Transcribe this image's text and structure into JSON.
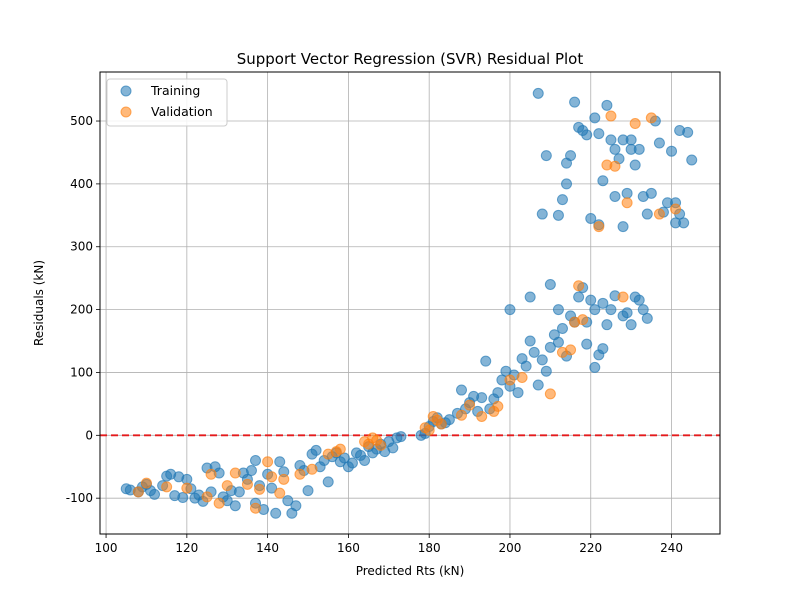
{
  "colors": {
    "training": "#1f77b4",
    "validation": "#ff7f0e",
    "zero_line": "#e41a1c",
    "grid": "#b0b0b0"
  },
  "chart_data": {
    "type": "scatter",
    "title": "Support Vector Regression (SVR) Residual Plot",
    "xlabel": "Predicted Rts (kN)",
    "ylabel": "Residuals (kN)",
    "xlim": [
      98.5,
      252
    ],
    "ylim": [
      -157,
      578
    ],
    "xticks": [
      100,
      120,
      140,
      160,
      180,
      200,
      220,
      240
    ],
    "yticks": [
      -100,
      0,
      100,
      200,
      300,
      400,
      500
    ],
    "grid": true,
    "legend": "top-left",
    "reference_line": {
      "y": 0,
      "style": "dashed",
      "color": "red"
    },
    "series": [
      {
        "name": "Training",
        "color": "#1f77b4",
        "points": [
          [
            105,
            -85
          ],
          [
            106,
            -87
          ],
          [
            108,
            -90
          ],
          [
            109,
            -82
          ],
          [
            110,
            -78
          ],
          [
            111,
            -88
          ],
          [
            112,
            -94
          ],
          [
            114,
            -80
          ],
          [
            115,
            -65
          ],
          [
            116,
            -62
          ],
          [
            117,
            -96
          ],
          [
            118,
            -66
          ],
          [
            119,
            -99
          ],
          [
            120,
            -70
          ],
          [
            121,
            -85
          ],
          [
            122,
            -100
          ],
          [
            123,
            -95
          ],
          [
            124,
            -105
          ],
          [
            125,
            -52
          ],
          [
            126,
            -90
          ],
          [
            127,
            -50
          ],
          [
            128,
            -60
          ],
          [
            129,
            -98
          ],
          [
            130,
            -104
          ],
          [
            131,
            -88
          ],
          [
            132,
            -112
          ],
          [
            133,
            -90
          ],
          [
            134,
            -60
          ],
          [
            135,
            -70
          ],
          [
            136,
            -56
          ],
          [
            137,
            -40
          ],
          [
            137,
            -108
          ],
          [
            138,
            -80
          ],
          [
            139,
            -118
          ],
          [
            140,
            -62
          ],
          [
            141,
            -84
          ],
          [
            142,
            -124
          ],
          [
            143,
            -42
          ],
          [
            144,
            -58
          ],
          [
            145,
            -104
          ],
          [
            146,
            -124
          ],
          [
            147,
            -112
          ],
          [
            148,
            -48
          ],
          [
            149,
            -56
          ],
          [
            150,
            -88
          ],
          [
            151,
            -30
          ],
          [
            152,
            -24
          ],
          [
            153,
            -50
          ],
          [
            154,
            -40
          ],
          [
            155,
            -74
          ],
          [
            156,
            -34
          ],
          [
            157,
            -28
          ],
          [
            158,
            -42
          ],
          [
            159,
            -36
          ],
          [
            160,
            -50
          ],
          [
            161,
            -44
          ],
          [
            162,
            -28
          ],
          [
            163,
            -32
          ],
          [
            164,
            -40
          ],
          [
            165,
            -18
          ],
          [
            166,
            -28
          ],
          [
            167,
            -22
          ],
          [
            168,
            -14
          ],
          [
            169,
            -26
          ],
          [
            170,
            -10
          ],
          [
            171,
            -20
          ],
          [
            172,
            -4
          ],
          [
            173,
            -2
          ],
          [
            178,
            0
          ],
          [
            179,
            3
          ],
          [
            180,
            14
          ],
          [
            181,
            22
          ],
          [
            182,
            28
          ],
          [
            183,
            18
          ],
          [
            184,
            20
          ],
          [
            185,
            25
          ],
          [
            187,
            35
          ],
          [
            188,
            72
          ],
          [
            189,
            42
          ],
          [
            190,
            52
          ],
          [
            191,
            62
          ],
          [
            192,
            38
          ],
          [
            193,
            60
          ],
          [
            194,
            118
          ],
          [
            195,
            42
          ],
          [
            196,
            58
          ],
          [
            197,
            68
          ],
          [
            198,
            88
          ],
          [
            199,
            102
          ],
          [
            200,
            78
          ],
          [
            201,
            96
          ],
          [
            202,
            68
          ],
          [
            203,
            122
          ],
          [
            204,
            110
          ],
          [
            205,
            150
          ],
          [
            206,
            132
          ],
          [
            207,
            80
          ],
          [
            208,
            120
          ],
          [
            209,
            102
          ],
          [
            210,
            140
          ],
          [
            211,
            160
          ],
          [
            212,
            148
          ],
          [
            213,
            170
          ],
          [
            214,
            126
          ],
          [
            215,
            190
          ],
          [
            216,
            180
          ],
          [
            217,
            220
          ],
          [
            218,
            235
          ],
          [
            219,
            145
          ],
          [
            220,
            215
          ],
          [
            221,
            200
          ],
          [
            222,
            128
          ],
          [
            223,
            210
          ],
          [
            224,
            176
          ],
          [
            225,
            200
          ],
          [
            226,
            222
          ],
          [
            228,
            190
          ],
          [
            229,
            195
          ],
          [
            230,
            176
          ],
          [
            231,
            220
          ],
          [
            232,
            215
          ],
          [
            233,
            200
          ],
          [
            234,
            186
          ],
          [
            200,
            200
          ],
          [
            205,
            220
          ],
          [
            210,
            240
          ],
          [
            212,
            200
          ],
          [
            219,
            180
          ],
          [
            221,
            108
          ],
          [
            223,
            138
          ],
          [
            208,
            352
          ],
          [
            209,
            445
          ],
          [
            212,
            350
          ],
          [
            213,
            375
          ],
          [
            214,
            400
          ],
          [
            215,
            445
          ],
          [
            216,
            530
          ],
          [
            217,
            490
          ],
          [
            218,
            485
          ],
          [
            219,
            478
          ],
          [
            220,
            345
          ],
          [
            221,
            505
          ],
          [
            222,
            480
          ],
          [
            223,
            405
          ],
          [
            224,
            525
          ],
          [
            225,
            470
          ],
          [
            226,
            455
          ],
          [
            227,
            440
          ],
          [
            228,
            470
          ],
          [
            229,
            385
          ],
          [
            230,
            455
          ],
          [
            231,
            430
          ],
          [
            232,
            455
          ],
          [
            233,
            380
          ],
          [
            234,
            352
          ],
          [
            235,
            385
          ],
          [
            236,
            500
          ],
          [
            237,
            465
          ],
          [
            238,
            355
          ],
          [
            239,
            370
          ],
          [
            240,
            452
          ],
          [
            241,
            370
          ],
          [
            242,
            485
          ],
          [
            243,
            338
          ],
          [
            244,
            482
          ],
          [
            245,
            438
          ],
          [
            207,
            544
          ],
          [
            214,
            433
          ],
          [
            222,
            335
          ],
          [
            226,
            380
          ],
          [
            228,
            332
          ],
          [
            230,
            470
          ],
          [
            241,
            338
          ],
          [
            242,
            352
          ]
        ]
      },
      {
        "name": "Validation",
        "color": "#ff7f0e",
        "points": [
          [
            108,
            -90
          ],
          [
            110,
            -76
          ],
          [
            115,
            -82
          ],
          [
            120,
            -84
          ],
          [
            125,
            -98
          ],
          [
            126,
            -62
          ],
          [
            128,
            -108
          ],
          [
            130,
            -80
          ],
          [
            132,
            -60
          ],
          [
            135,
            -78
          ],
          [
            137,
            -116
          ],
          [
            138,
            -86
          ],
          [
            140,
            -42
          ],
          [
            141,
            -66
          ],
          [
            143,
            -92
          ],
          [
            144,
            -70
          ],
          [
            148,
            -62
          ],
          [
            151,
            -54
          ],
          [
            155,
            -30
          ],
          [
            157,
            -26
          ],
          [
            158,
            -22
          ],
          [
            164,
            -10
          ],
          [
            165,
            -14
          ],
          [
            166,
            -4
          ],
          [
            167,
            -8
          ],
          [
            168,
            -16
          ],
          [
            179,
            12
          ],
          [
            180,
            8
          ],
          [
            181,
            30
          ],
          [
            182,
            24
          ],
          [
            183,
            18
          ],
          [
            188,
            32
          ],
          [
            190,
            48
          ],
          [
            193,
            30
          ],
          [
            196,
            38
          ],
          [
            197,
            46
          ],
          [
            200,
            88
          ],
          [
            203,
            92
          ],
          [
            210,
            66
          ],
          [
            213,
            132
          ],
          [
            215,
            136
          ],
          [
            216,
            180
          ],
          [
            217,
            238
          ],
          [
            218,
            184
          ],
          [
            224,
            430
          ],
          [
            225,
            508
          ],
          [
            228,
            220
          ],
          [
            229,
            370
          ],
          [
            231,
            496
          ],
          [
            235,
            505
          ],
          [
            237,
            352
          ],
          [
            241,
            360
          ],
          [
            222,
            332
          ],
          [
            226,
            428
          ]
        ]
      }
    ]
  }
}
